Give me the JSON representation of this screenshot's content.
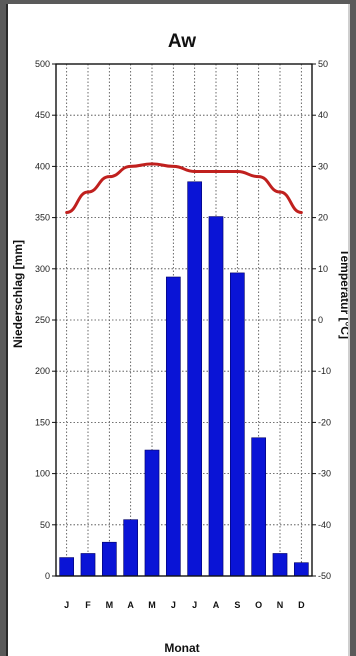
{
  "chart_data": {
    "type": "bar",
    "title": "Aw",
    "xlabel": "Monat",
    "ylabel_left": "Niederschlag [mm]",
    "ylabel_right": "Temperatur [°C]",
    "categories": [
      "J",
      "F",
      "M",
      "A",
      "M",
      "J",
      "J",
      "A",
      "S",
      "O",
      "N",
      "D"
    ],
    "series": [
      {
        "kind": "bar",
        "axis": "left",
        "color": "#0a14d6",
        "values": [
          18,
          22,
          33,
          55,
          123,
          292,
          385,
          351,
          296,
          135,
          22,
          13
        ]
      },
      {
        "kind": "line",
        "axis": "right",
        "color": "#c0201e",
        "values": [
          21,
          25,
          28,
          30,
          30.5,
          30,
          29,
          29,
          29,
          28,
          25,
          21
        ]
      }
    ],
    "ylim_left": [
      0,
      500
    ],
    "yticks_left": [
      0,
      50,
      100,
      150,
      200,
      250,
      300,
      350,
      400,
      450,
      500
    ],
    "ylim_right": [
      -50,
      50
    ],
    "yticks_right": [
      -50,
      -40,
      -30,
      -20,
      -10,
      0,
      10,
      20,
      30,
      40,
      50
    ],
    "grid": true
  }
}
